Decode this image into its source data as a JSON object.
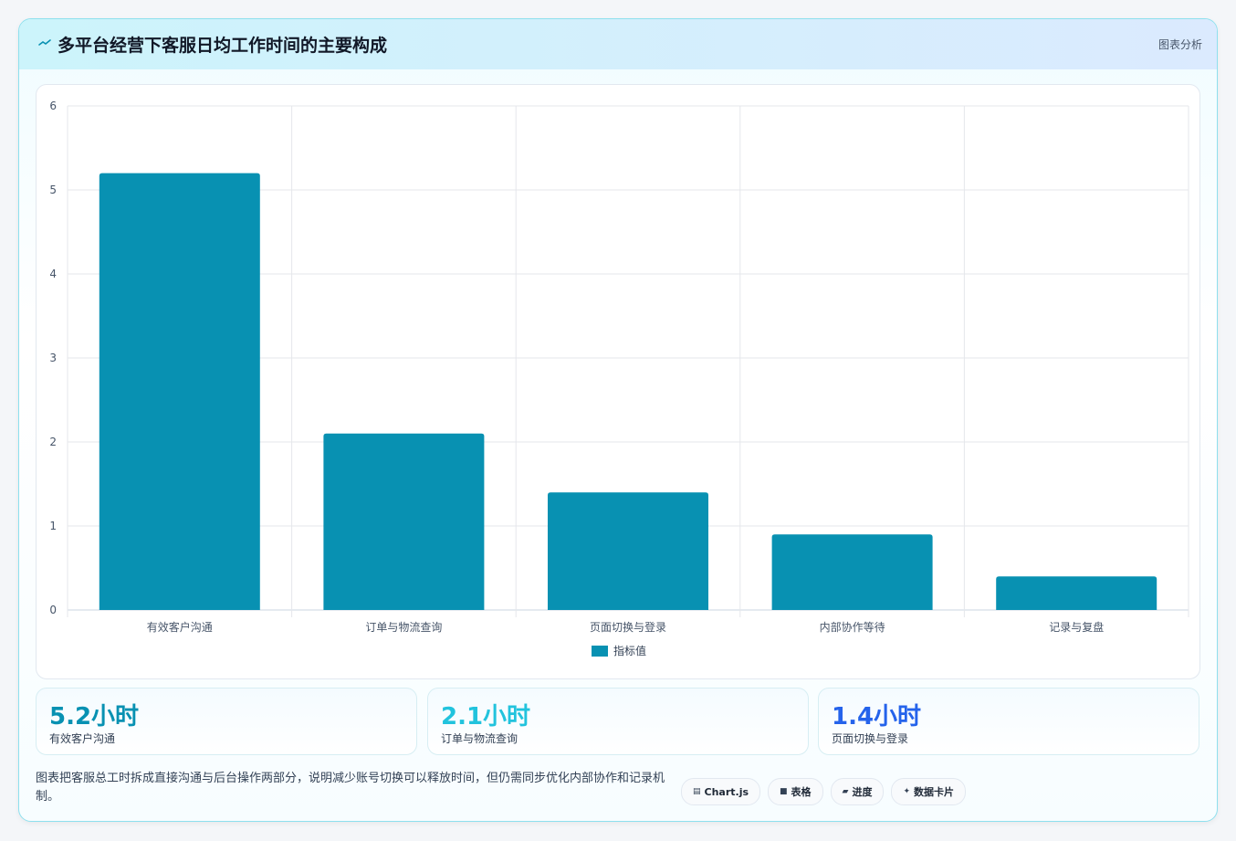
{
  "header": {
    "title": "多平台经营下客服日均工作时间的主要构成",
    "tag": "图表分析"
  },
  "chart_data": {
    "type": "bar",
    "categories": [
      "有效客户沟通",
      "订单与物流查询",
      "页面切换与登录",
      "内部协作等待",
      "记录与复盘"
    ],
    "series": [
      {
        "name": "指标值",
        "values": [
          5.2,
          2.1,
          1.4,
          0.9,
          0.4
        ]
      }
    ],
    "ylim": [
      0,
      6
    ],
    "yticks": [
      0,
      1,
      2,
      3,
      4,
      5,
      6
    ],
    "grid": true,
    "legend": "bottom",
    "bar_color": "#0891b2"
  },
  "stats": [
    {
      "value": "5.2小时",
      "label": "有效客户沟通",
      "color": "#0891b2"
    },
    {
      "value": "2.1小时",
      "label": "订单与物流查询",
      "color": "#22c3dd"
    },
    {
      "value": "1.4小时",
      "label": "页面切换与登录",
      "color": "#2563eb"
    }
  ],
  "note": "图表把客服总工时拆成直接沟通与后台操作两部分，说明减少账号切换可以释放时间，但仍需同步优化内部协作和记录机制。",
  "chips": [
    {
      "icon": "▤",
      "label": "Chart.js"
    },
    {
      "icon": "■",
      "label": "表格"
    },
    {
      "icon": "▰",
      "label": "进度"
    },
    {
      "icon": "✦",
      "label": "数据卡片"
    }
  ]
}
